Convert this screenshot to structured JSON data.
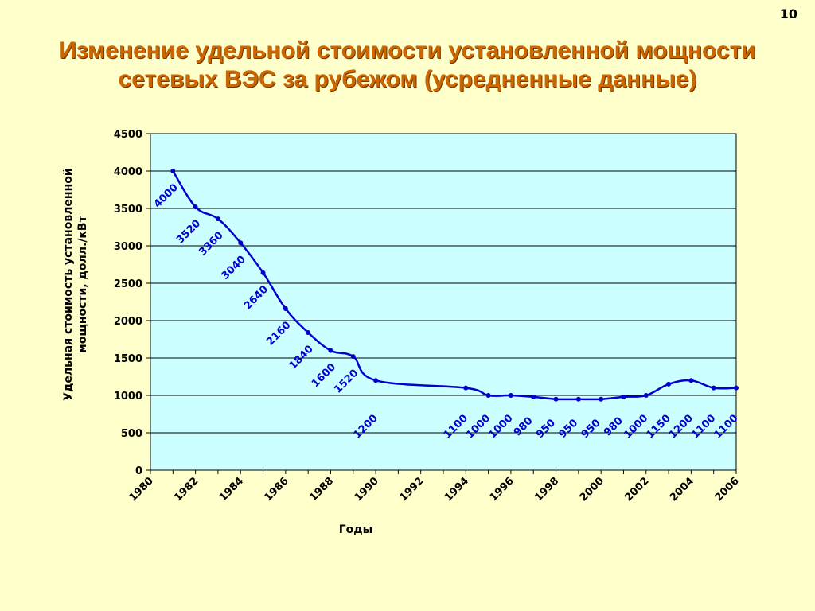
{
  "page_number": "10",
  "title_line1": "Изменение удельной стоимости установленной мощности",
  "title_line2": "сетевых ВЭС за рубежом (усредненные данные)",
  "colors": {
    "background": "#ffffcc",
    "plot_area": "#ccffff",
    "line": "#0000cc",
    "title": "#cc6600"
  },
  "chart_data": {
    "type": "line",
    "xlabel": "Годы",
    "ylabel_line1": "Удельная стоимость установленной",
    "ylabel_line2": "мощности, долл./кВт",
    "xlim": [
      1980,
      2006
    ],
    "ylim": [
      0,
      4500
    ],
    "x_ticks": [
      "1980",
      "1982",
      "1984",
      "1986",
      "1988",
      "1990",
      "1992",
      "1994",
      "1996",
      "1998",
      "2000",
      "2002",
      "2004",
      "2006"
    ],
    "y_ticks": [
      "0",
      "500",
      "1000",
      "1500",
      "2000",
      "2500",
      "3000",
      "3500",
      "4000",
      "4500"
    ],
    "grid": "horizontal",
    "series": [
      {
        "points": [
          {
            "x": 1981,
            "y": 4000,
            "label": "4000"
          },
          {
            "x": 1982,
            "y": 3520,
            "label": "3520"
          },
          {
            "x": 1983,
            "y": 3360,
            "label": "3360"
          },
          {
            "x": 1984,
            "y": 3040,
            "label": "3040"
          },
          {
            "x": 1985,
            "y": 2640,
            "label": "2640"
          },
          {
            "x": 1986,
            "y": 2160,
            "label": "2160"
          },
          {
            "x": 1987,
            "y": 1840,
            "label": "1840"
          },
          {
            "x": 1988,
            "y": 1600,
            "label": "1600"
          },
          {
            "x": 1989,
            "y": 1520,
            "label": "1520"
          },
          {
            "x": 1990,
            "y": 1200,
            "label": "1200"
          },
          {
            "x": 1994,
            "y": 1100,
            "label": "1100"
          },
          {
            "x": 1995,
            "y": 1000,
            "label": "1000"
          },
          {
            "x": 1996,
            "y": 1000,
            "label": "1000"
          },
          {
            "x": 1997,
            "y": 980,
            "label": "980"
          },
          {
            "x": 1998,
            "y": 950,
            "label": "950"
          },
          {
            "x": 1999,
            "y": 950,
            "label": "950"
          },
          {
            "x": 2000,
            "y": 950,
            "label": "950"
          },
          {
            "x": 2001,
            "y": 980,
            "label": "980"
          },
          {
            "x": 2002,
            "y": 1000,
            "label": "1000"
          },
          {
            "x": 2003,
            "y": 1150,
            "label": "1150"
          },
          {
            "x": 2004,
            "y": 1200,
            "label": "1200"
          },
          {
            "x": 2005,
            "y": 1100,
            "label": "1100"
          },
          {
            "x": 2006,
            "y": 1100,
            "label": "1100"
          }
        ]
      }
    ]
  }
}
